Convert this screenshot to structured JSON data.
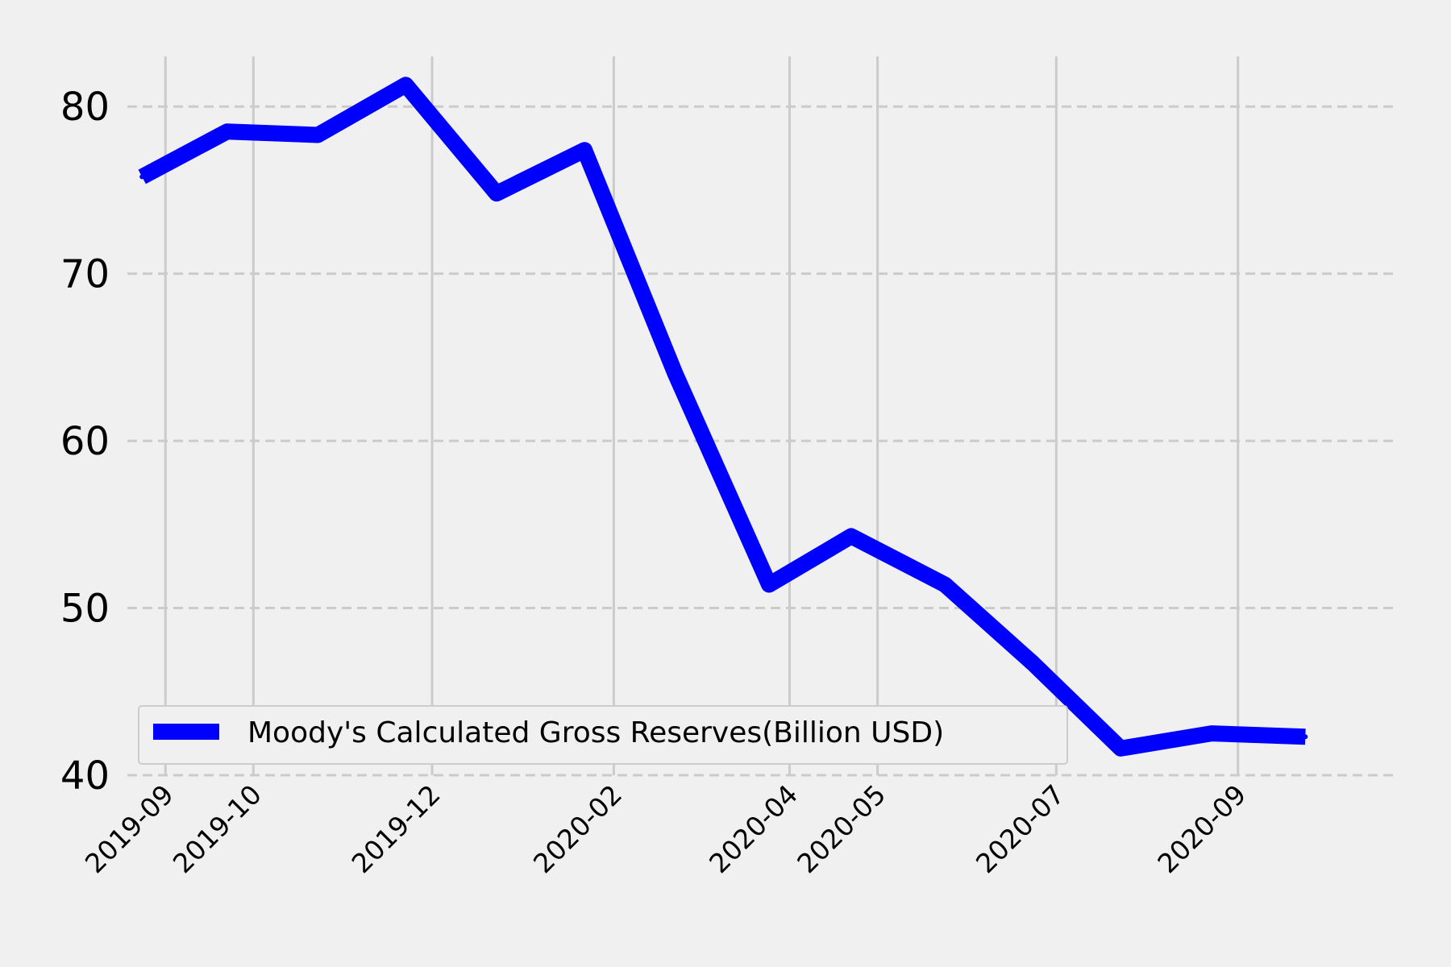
{
  "chart_data": {
    "type": "line",
    "title": "",
    "xlabel": "",
    "ylabel": "",
    "x_ticks": [
      "2019-09",
      "2019-10",
      "2019-12",
      "2020-02",
      "2020-04",
      "2020-05",
      "2020-07",
      "2020-09"
    ],
    "y_ticks": [
      40,
      50,
      60,
      70,
      80
    ],
    "ylim": [
      40,
      83
    ],
    "xlim": [
      "2019-08-19",
      "2020-10-25"
    ],
    "grid": true,
    "legend_position": "lower-left",
    "series": [
      {
        "name": "Moody's Calculated Gross Reserves(Billion USD)",
        "color": "#0000ff",
        "x": [
          "2019-08-24",
          "2019-09-22",
          "2019-10-23",
          "2019-11-22",
          "2019-12-23",
          "2020-01-22",
          "2020-02-22",
          "2020-03-25",
          "2020-04-22",
          "2020-05-24",
          "2020-06-23",
          "2020-07-23",
          "2020-08-23",
          "2020-09-24"
        ],
        "values": [
          75.8,
          78.5,
          78.3,
          81.3,
          74.8,
          77.4,
          64.0,
          51.4,
          54.3,
          51.4,
          46.7,
          41.6,
          42.5,
          42.3
        ]
      }
    ]
  }
}
